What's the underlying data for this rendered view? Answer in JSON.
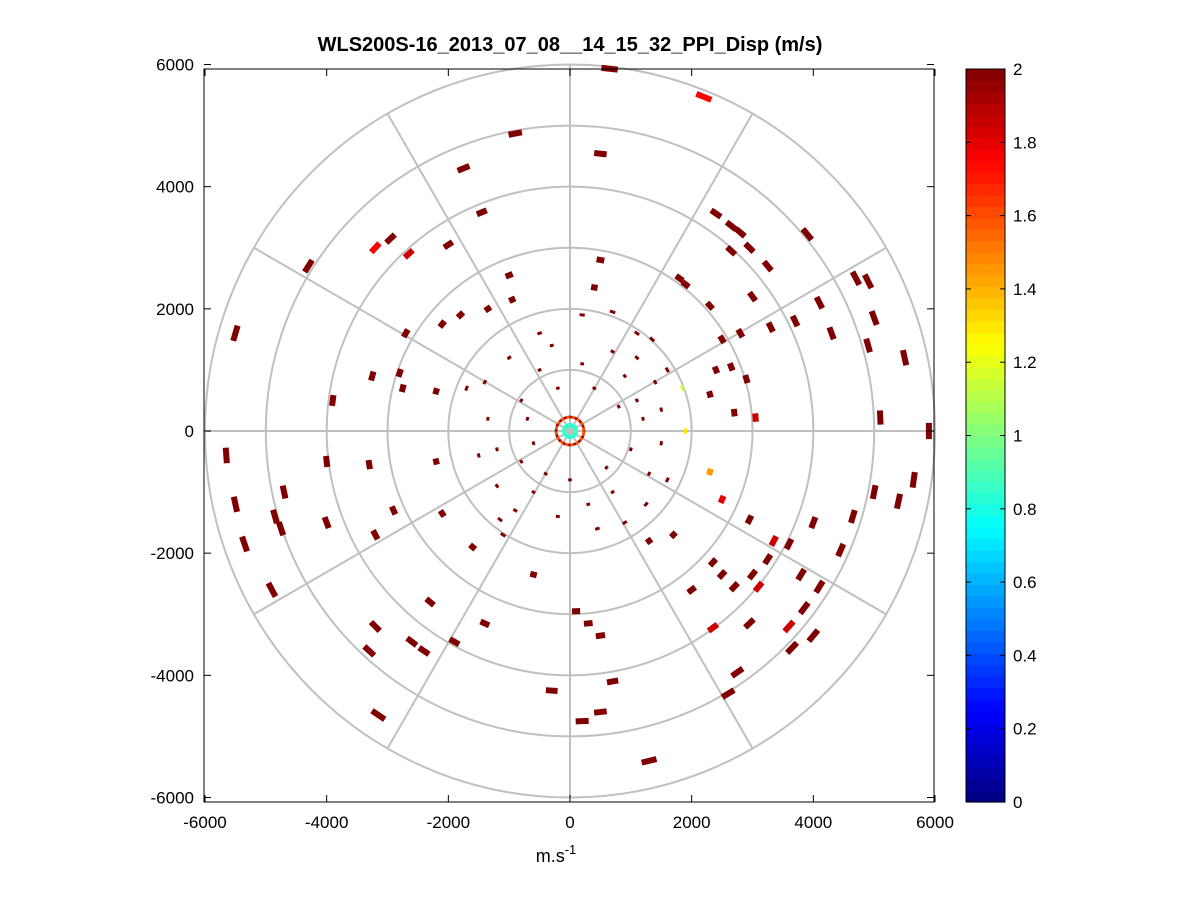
{
  "chart_data": {
    "type": "scatter",
    "subtype": "polar-ppi",
    "title": "WLS200S-16_2013_07_08__14_15_32_PPI_Disp (m/s)",
    "xlabel": "m.s",
    "xlabel_superscript": "-1",
    "ylabel": "",
    "xlim": [
      -6000,
      6000
    ],
    "ylim": [
      -6000,
      6000
    ],
    "xticks": [
      -6000,
      -4000,
      -2000,
      0,
      2000,
      4000,
      6000
    ],
    "xtick_labels": [
      "-6000",
      "-4000",
      "-2000",
      "0",
      "2000",
      "4000",
      "6000"
    ],
    "yticks": [
      6000,
      4000,
      2000,
      0,
      -2000,
      -4000,
      -6000
    ],
    "ytick_labels": [
      "6000",
      "4000",
      "2000",
      "0",
      "-2000",
      "-4000",
      "-6000"
    ],
    "polar_grid": {
      "ring_radii": [
        1000,
        2000,
        3000,
        4000,
        5000,
        6000
      ],
      "spoke_angles_deg": [
        0,
        30,
        60,
        90,
        120,
        150,
        180,
        210,
        240,
        270,
        300,
        330
      ]
    },
    "colorbar": {
      "min": 0,
      "max": 2,
      "ticks": [
        0,
        0.2,
        0.4,
        0.6,
        0.8,
        1,
        1.2,
        1.4,
        1.6,
        1.8,
        2
      ],
      "tick_labels": [
        "0",
        "0.2",
        "0.4",
        "0.6",
        "0.8",
        "1",
        "1.2",
        "1.4",
        "1.6",
        "1.8",
        "2"
      ],
      "colormap": "jet",
      "levels": 64
    },
    "points": [
      {
        "x": 650,
        "y": 5930,
        "v": 2
      },
      {
        "x": 2200,
        "y": 5470,
        "v": 1.75
      },
      {
        "x": -900,
        "y": 4870,
        "v": 2
      },
      {
        "x": 500,
        "y": 4540,
        "v": 2
      },
      {
        "x": -1750,
        "y": 4300,
        "v": 2
      },
      {
        "x": -1450,
        "y": 3580,
        "v": 2
      },
      {
        "x": -3200,
        "y": 3000,
        "v": 1.75
      },
      {
        "x": -2950,
        "y": 3150,
        "v": 2
      },
      {
        "x": -2650,
        "y": 2900,
        "v": 1.85
      },
      {
        "x": -2000,
        "y": 3050,
        "v": 2
      },
      {
        "x": -4300,
        "y": 2700,
        "v": 2
      },
      {
        "x": -5500,
        "y": 1600,
        "v": 2
      },
      {
        "x": 2400,
        "y": 3560,
        "v": 2
      },
      {
        "x": 2650,
        "y": 3360,
        "v": 2
      },
      {
        "x": 2800,
        "y": 3250,
        "v": 2
      },
      {
        "x": 2950,
        "y": 3000,
        "v": 2
      },
      {
        "x": 2650,
        "y": 2950,
        "v": 2
      },
      {
        "x": 3250,
        "y": 2700,
        "v": 2
      },
      {
        "x": 3900,
        "y": 3220,
        "v": 2
      },
      {
        "x": 4700,
        "y": 2500,
        "v": 2
      },
      {
        "x": 4900,
        "y": 2450,
        "v": 2
      },
      {
        "x": 4100,
        "y": 2100,
        "v": 2
      },
      {
        "x": 4300,
        "y": 1600,
        "v": 2
      },
      {
        "x": 5000,
        "y": 1850,
        "v": 2
      },
      {
        "x": 4900,
        "y": 1400,
        "v": 2
      },
      {
        "x": 3700,
        "y": 1800,
        "v": 2
      },
      {
        "x": 3300,
        "y": 1700,
        "v": 2
      },
      {
        "x": 3000,
        "y": 2200,
        "v": 2
      },
      {
        "x": 2800,
        "y": 1600,
        "v": 2
      },
      {
        "x": 2500,
        "y": 1500,
        "v": 2
      },
      {
        "x": 2300,
        "y": 2050,
        "v": 2
      },
      {
        "x": 1900,
        "y": 2400,
        "v": 2
      },
      {
        "x": 1800,
        "y": 2500,
        "v": 2
      },
      {
        "x": 5500,
        "y": 1200,
        "v": 2
      },
      {
        "x": 2400,
        "y": 1000,
        "v": 2
      },
      {
        "x": 2650,
        "y": 1050,
        "v": 2
      },
      {
        "x": 2900,
        "y": 850,
        "v": 2
      },
      {
        "x": 2300,
        "y": 600,
        "v": 2
      },
      {
        "x": 2700,
        "y": 300,
        "v": 2
      },
      {
        "x": 3050,
        "y": 220,
        "v": 1.85
      },
      {
        "x": 5100,
        "y": 220,
        "v": 2
      },
      {
        "x": 5900,
        "y": 0,
        "v": 2
      },
      {
        "x": 1850,
        "y": 700,
        "v": 1.15
      },
      {
        "x": 1900,
        "y": 0,
        "v": 1.3
      },
      {
        "x": 2300,
        "y": -670,
        "v": 1.45
      },
      {
        "x": 2500,
        "y": -1120,
        "v": 1.8
      },
      {
        "x": 2950,
        "y": -1450,
        "v": 2
      },
      {
        "x": 3350,
        "y": -1800,
        "v": 1.85
      },
      {
        "x": 3600,
        "y": -1850,
        "v": 2
      },
      {
        "x": 3250,
        "y": -2100,
        "v": 2
      },
      {
        "x": 3000,
        "y": -2350,
        "v": 2
      },
      {
        "x": 3800,
        "y": -2350,
        "v": 2
      },
      {
        "x": 3100,
        "y": -2550,
        "v": 1.85
      },
      {
        "x": 4100,
        "y": -2550,
        "v": 2
      },
      {
        "x": 3850,
        "y": -2900,
        "v": 2
      },
      {
        "x": 3600,
        "y": -3200,
        "v": 1.85
      },
      {
        "x": 3650,
        "y": -3550,
        "v": 2
      },
      {
        "x": 4000,
        "y": -3350,
        "v": 2
      },
      {
        "x": 2950,
        "y": -3150,
        "v": 2
      },
      {
        "x": 2350,
        "y": -3220,
        "v": 1.85
      },
      {
        "x": 2000,
        "y": -2600,
        "v": 2
      },
      {
        "x": 2350,
        "y": -2150,
        "v": 2
      },
      {
        "x": 2500,
        "y": -2350,
        "v": 2
      },
      {
        "x": 2700,
        "y": -2550,
        "v": 2
      },
      {
        "x": 4000,
        "y": -1500,
        "v": 2
      },
      {
        "x": 4650,
        "y": -1400,
        "v": 2
      },
      {
        "x": 5000,
        "y": -1000,
        "v": 2
      },
      {
        "x": 5400,
        "y": -1150,
        "v": 2
      },
      {
        "x": 5650,
        "y": -800,
        "v": 2
      },
      {
        "x": 4450,
        "y": -1950,
        "v": 2
      },
      {
        "x": 2750,
        "y": -3950,
        "v": 2
      },
      {
        "x": 2600,
        "y": -4300,
        "v": 2
      },
      {
        "x": 1300,
        "y": -5400,
        "v": 2
      },
      {
        "x": 500,
        "y": -4600,
        "v": 2
      },
      {
        "x": 200,
        "y": -4750,
        "v": 2
      },
      {
        "x": -300,
        "y": -4250,
        "v": 2
      },
      {
        "x": 700,
        "y": -4100,
        "v": 2
      },
      {
        "x": 500,
        "y": -3350,
        "v": 2
      },
      {
        "x": 300,
        "y": -3150,
        "v": 2
      },
      {
        "x": 100,
        "y": -2950,
        "v": 2
      },
      {
        "x": -600,
        "y": -2350,
        "v": 2
      },
      {
        "x": -1400,
        "y": -3150,
        "v": 2
      },
      {
        "x": -1900,
        "y": -3450,
        "v": 2
      },
      {
        "x": -2300,
        "y": -2800,
        "v": 2
      },
      {
        "x": -2600,
        "y": -3450,
        "v": 2
      },
      {
        "x": -2400,
        "y": -3600,
        "v": 2
      },
      {
        "x": -3200,
        "y": -3200,
        "v": 2
      },
      {
        "x": -3300,
        "y": -3600,
        "v": 2
      },
      {
        "x": -3150,
        "y": -4650,
        "v": 2
      },
      {
        "x": -4900,
        "y": -2600,
        "v": 2
      },
      {
        "x": -5350,
        "y": -1850,
        "v": 2
      },
      {
        "x": -5500,
        "y": -1200,
        "v": 2
      },
      {
        "x": -5650,
        "y": -400,
        "v": 2
      },
      {
        "x": -4700,
        "y": -1000,
        "v": 2
      },
      {
        "x": -4850,
        "y": -1400,
        "v": 2
      },
      {
        "x": -4750,
        "y": -1600,
        "v": 2
      },
      {
        "x": -4000,
        "y": -1500,
        "v": 2
      },
      {
        "x": -3200,
        "y": -1700,
        "v": 2
      },
      {
        "x": -2900,
        "y": -1300,
        "v": 2
      },
      {
        "x": -2100,
        "y": -1350,
        "v": 2
      },
      {
        "x": -1600,
        "y": -1900,
        "v": 2
      },
      {
        "x": -1100,
        "y": -1700,
        "v": 2
      },
      {
        "x": -4000,
        "y": -500,
        "v": 2
      },
      {
        "x": -3300,
        "y": -550,
        "v": 2
      },
      {
        "x": -2200,
        "y": -500,
        "v": 2
      },
      {
        "x": -1500,
        "y": -400,
        "v": 2
      },
      {
        "x": -3900,
        "y": 500,
        "v": 2
      },
      {
        "x": -3250,
        "y": 900,
        "v": 2
      },
      {
        "x": -2750,
        "y": 700,
        "v": 2
      },
      {
        "x": -2800,
        "y": 950,
        "v": 2
      },
      {
        "x": -2200,
        "y": 650,
        "v": 2
      },
      {
        "x": -2700,
        "y": 1600,
        "v": 2
      },
      {
        "x": -2100,
        "y": 1750,
        "v": 2
      },
      {
        "x": -1800,
        "y": 1900,
        "v": 2
      },
      {
        "x": -1350,
        "y": 2000,
        "v": 2
      },
      {
        "x": -1000,
        "y": 2550,
        "v": 2
      },
      {
        "x": -950,
        "y": 2150,
        "v": 2
      },
      {
        "x": -1700,
        "y": 700,
        "v": 2
      },
      {
        "x": 500,
        "y": 2800,
        "v": 2
      },
      {
        "x": 400,
        "y": 2350,
        "v": 2
      },
      {
        "x": 200,
        "y": 1900,
        "v": 2
      },
      {
        "x": 700,
        "y": 1950,
        "v": 2
      },
      {
        "x": 1100,
        "y": 1200,
        "v": 2
      },
      {
        "x": 1400,
        "y": 800,
        "v": 2
      },
      {
        "x": 1500,
        "y": 350,
        "v": 2
      },
      {
        "x": 1200,
        "y": 200,
        "v": 2
      },
      {
        "x": 1000,
        "y": -300,
        "v": 2
      },
      {
        "x": 1300,
        "y": -700,
        "v": 2
      },
      {
        "x": 1600,
        "y": -800,
        "v": 2
      },
      {
        "x": 1700,
        "y": -1700,
        "v": 2
      },
      {
        "x": 1300,
        "y": -1800,
        "v": 2
      },
      {
        "x": 900,
        "y": -1500,
        "v": 2
      },
      {
        "x": 1100,
        "y": 1600,
        "v": 2
      },
      {
        "x": 700,
        "y": 1300,
        "v": 2
      },
      {
        "x": -900,
        "y": -1300,
        "v": 2
      },
      {
        "x": -1200,
        "y": -900,
        "v": 2
      },
      {
        "x": -800,
        "y": -500,
        "v": 2
      },
      {
        "x": -600,
        "y": -1000,
        "v": 2
      },
      {
        "x": -500,
        "y": 1000,
        "v": 2
      },
      {
        "x": -800,
        "y": 500,
        "v": 2
      },
      {
        "x": -1000,
        "y": 1200,
        "v": 2
      },
      {
        "x": -300,
        "y": 1400,
        "v": 2
      },
      {
        "x": -200,
        "y": -1400,
        "v": 2
      },
      {
        "x": 300,
        "y": -1200,
        "v": 2
      },
      {
        "x": 600,
        "y": -600,
        "v": 2
      },
      {
        "x": 400,
        "y": 700,
        "v": 2
      },
      {
        "x": 800,
        "y": 400,
        "v": 2
      },
      {
        "x": -400,
        "y": -700,
        "v": 2
      },
      {
        "x": -700,
        "y": 200,
        "v": 2
      },
      {
        "x": -600,
        "y": -200,
        "v": 2
      },
      {
        "x": 1500,
        "y": -200,
        "v": 2
      },
      {
        "x": 1100,
        "y": 500,
        "v": 2
      },
      {
        "x": 200,
        "y": 1100,
        "v": 2
      },
      {
        "x": -200,
        "y": 700,
        "v": 2
      },
      {
        "x": 0,
        "y": -800,
        "v": 2
      },
      {
        "x": 700,
        "y": -1000,
        "v": 2
      },
      {
        "x": 1250,
        "y": -1200,
        "v": 2
      },
      {
        "x": -1350,
        "y": 200,
        "v": 2
      },
      {
        "x": -1200,
        "y": -300,
        "v": 2
      },
      {
        "x": 900,
        "y": 900,
        "v": 2
      },
      {
        "x": -1400,
        "y": 800,
        "v": 2
      },
      {
        "x": -1150,
        "y": -1450,
        "v": 2
      },
      {
        "x": 1600,
        "y": 1000,
        "v": 2
      },
      {
        "x": 1350,
        "y": 1500,
        "v": 2
      },
      {
        "x": -500,
        "y": 1600,
        "v": 2
      },
      {
        "x": 450,
        "y": -1600,
        "v": 2
      }
    ],
    "center_ring": {
      "radius_inner": 130,
      "radius_outer": 250,
      "v_inner": 0.8,
      "v_outer": 1.6
    }
  }
}
